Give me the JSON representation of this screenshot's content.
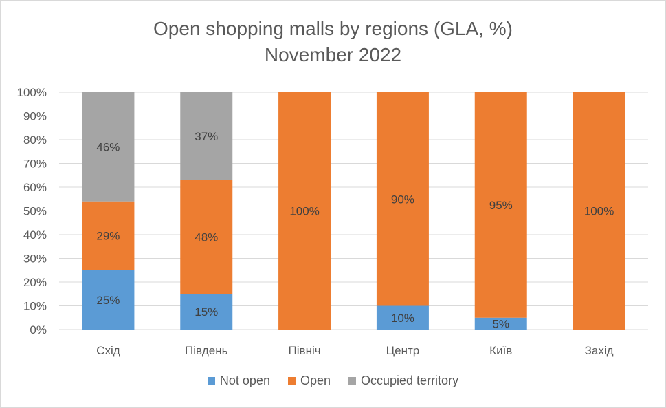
{
  "colors": {
    "not_open": "#5b9bd5",
    "open": "#ed7d31",
    "occupied": "#a5a5a5",
    "grid": "#d9d9d9",
    "text": "#595959",
    "label_text": "#404040"
  },
  "chart_data": {
    "type": "bar",
    "stacked": true,
    "percent": true,
    "title_lines": [
      "Open shopping malls by regions (GLA, %)",
      "November 2022"
    ],
    "categories": [
      "Схід",
      "Південь",
      "Північ",
      "Центр",
      "Київ",
      "Захід"
    ],
    "series": [
      {
        "name": "Not open",
        "key": "not_open",
        "values": [
          25,
          15,
          0,
          10,
          5,
          0
        ],
        "labels": [
          "25%",
          "15%",
          "",
          "10%",
          "5%",
          ""
        ]
      },
      {
        "name": "Open",
        "key": "open",
        "values": [
          29,
          48,
          100,
          90,
          95,
          100
        ],
        "labels": [
          "29%",
          "48%",
          "100%",
          "90%",
          "95%",
          "100%"
        ]
      },
      {
        "name": "Occupied territory",
        "key": "occupied",
        "values": [
          46,
          37,
          0,
          0,
          0,
          0
        ],
        "labels": [
          "46%",
          "37%",
          "",
          "",
          "",
          ""
        ]
      }
    ],
    "ylim": [
      0,
      100
    ],
    "yticks": [
      "0%",
      "10%",
      "20%",
      "30%",
      "40%",
      "50%",
      "60%",
      "70%",
      "80%",
      "90%",
      "100%"
    ],
    "grid": true,
    "legend_position": "bottom"
  }
}
